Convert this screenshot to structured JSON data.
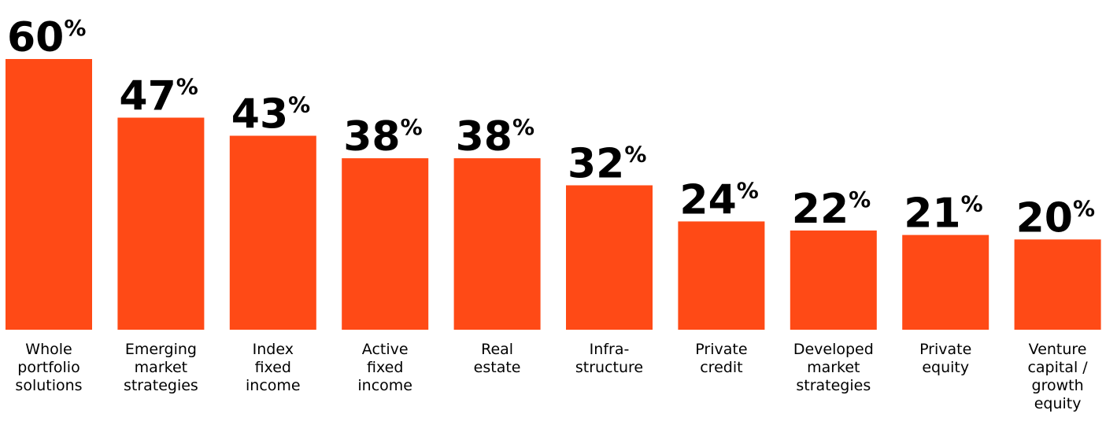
{
  "chart_data": {
    "type": "bar",
    "title": "",
    "xlabel": "",
    "ylabel": "",
    "ylim": [
      0,
      60
    ],
    "grid": false,
    "legend": "none",
    "unit_suffix": "%",
    "categories": [
      [
        "Whole",
        "portfolio",
        "solutions"
      ],
      [
        "Emerging",
        "market",
        "strategies"
      ],
      [
        "Index",
        "fixed",
        "income"
      ],
      [
        "Active",
        "fixed",
        "income"
      ],
      [
        "Real",
        "estate"
      ],
      [
        "Infra-",
        "structure"
      ],
      [
        "Private",
        "credit"
      ],
      [
        "Developed",
        "market",
        "strategies"
      ],
      [
        "Private",
        "equity"
      ],
      [
        "Venture",
        "capital /",
        "growth",
        "equity"
      ]
    ],
    "values": [
      60,
      47,
      43,
      38,
      38,
      32,
      24,
      22,
      21,
      20
    ],
    "bar_color": "#FF4A16",
    "label_color": "#000000"
  }
}
